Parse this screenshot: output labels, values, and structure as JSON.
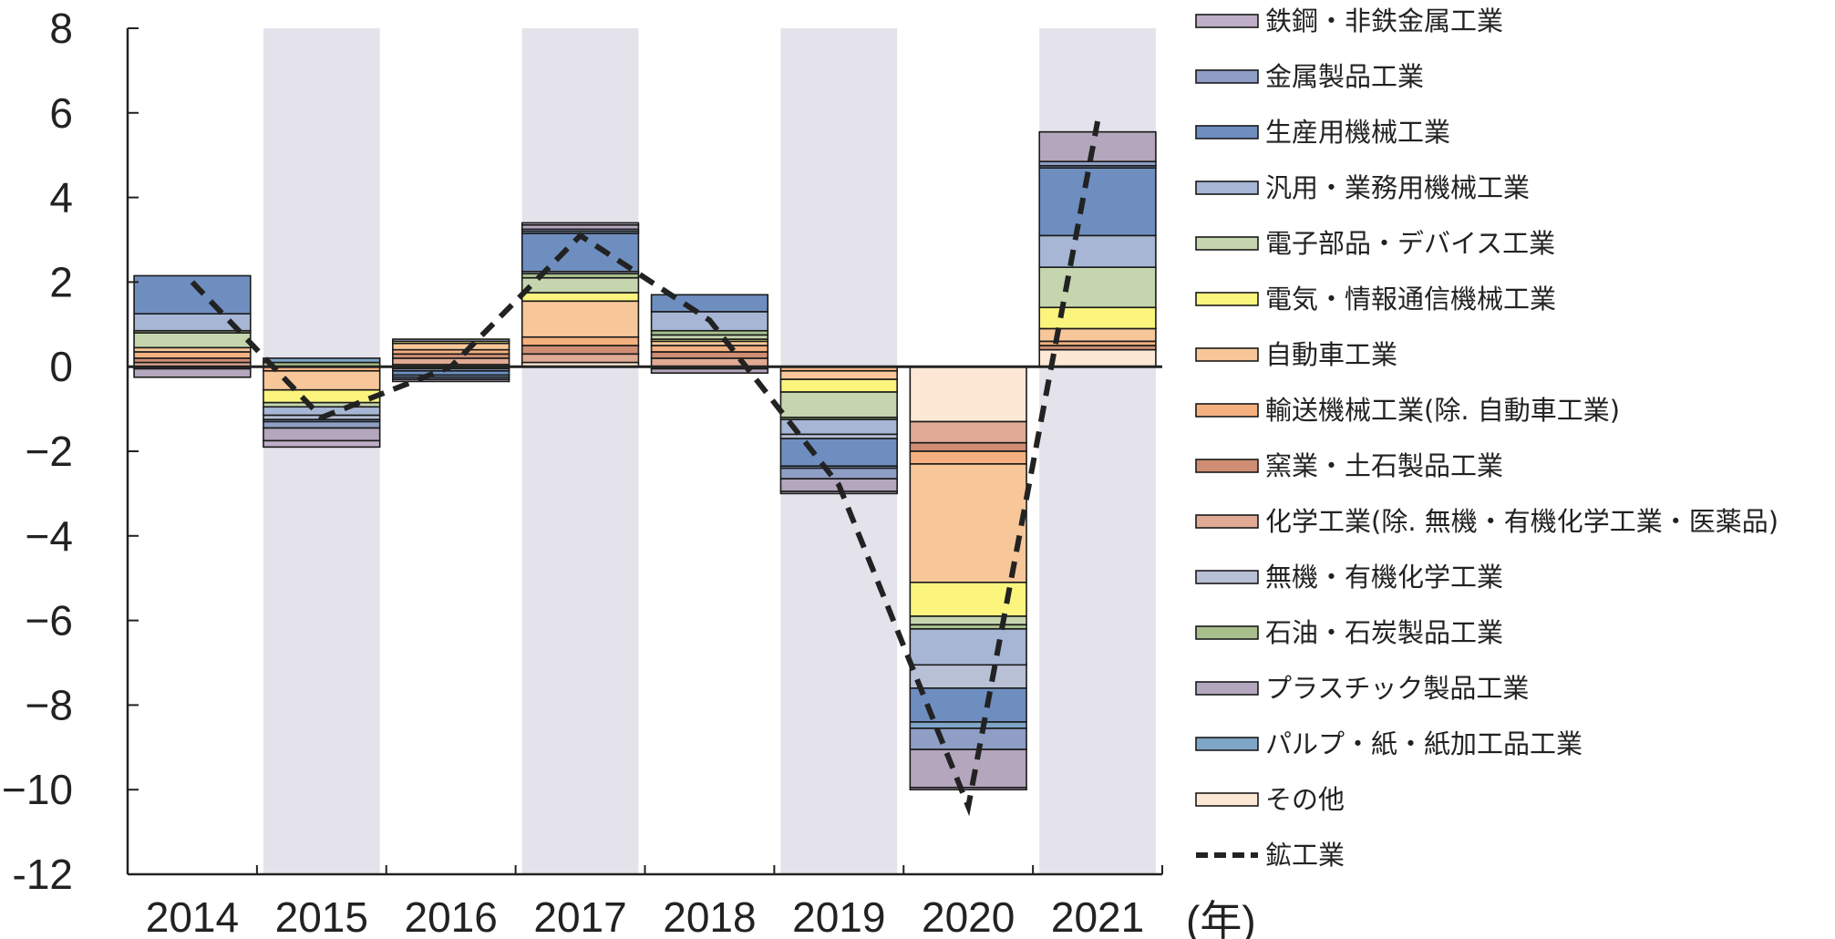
{
  "chart_data": {
    "type": "bar",
    "stacked": true,
    "categories": [
      "2014",
      "2015",
      "2016",
      "2017",
      "2018",
      "2019",
      "2020",
      "2021"
    ],
    "x_unit_label": "(年)",
    "ylim": [
      -12,
      8
    ],
    "yticks": [
      8,
      6,
      4,
      2,
      0,
      -2,
      -4,
      -6,
      -8,
      -10,
      -12
    ],
    "ytick_labels": [
      "8",
      "6",
      "4",
      "2",
      "0",
      "−2",
      "−4",
      "−6",
      "−8",
      "−10",
      "-12"
    ],
    "shaded_categories": [
      "2015",
      "2017",
      "2019",
      "2021"
    ],
    "legend_position": "right",
    "series": [
      {
        "name": "その他",
        "color": "#fde8d6",
        "values": [
          0.0,
          0.0,
          0.05,
          0.1,
          0.0,
          0.0,
          -1.3,
          0.4
        ]
      },
      {
        "name": "化学工業(除. 無機・有機化学工業・医薬品)",
        "color": "#e0aa94",
        "values": [
          0.1,
          0.0,
          0.15,
          0.2,
          0.2,
          0.0,
          -0.5,
          0.0
        ]
      },
      {
        "name": "窯業・土石製品工業",
        "color": "#cf8e74",
        "values": [
          0.1,
          0.0,
          0.1,
          0.2,
          0.15,
          0.0,
          -0.2,
          0.1
        ]
      },
      {
        "name": "輸送機械工業(除. 自動車工業)",
        "color": "#f4b17f",
        "values": [
          0.15,
          -0.1,
          0.1,
          0.2,
          0.15,
          -0.1,
          -0.3,
          0.1
        ]
      },
      {
        "name": "自動車工業",
        "color": "#f7c79a",
        "values": [
          0.1,
          -0.45,
          0.15,
          0.85,
          0.1,
          -0.2,
          -2.8,
          0.3
        ]
      },
      {
        "name": "電気・情報通信機械工業",
        "color": "#fbf57e",
        "values": [
          0.0,
          -0.3,
          0.05,
          0.2,
          0.05,
          -0.3,
          -0.8,
          0.5
        ]
      },
      {
        "name": "電子部品・デバイス工業",
        "color": "#c5d5ae",
        "values": [
          0.35,
          -0.1,
          0.0,
          0.35,
          0.1,
          -0.6,
          -0.2,
          0.95
        ]
      },
      {
        "name": "石油・石炭製品工業",
        "color": "#a8bf8c",
        "values": [
          0.05,
          0.1,
          -0.05,
          0.1,
          0.1,
          -0.05,
          -0.1,
          0.0
        ]
      },
      {
        "name": "汎用・業務用機械工業",
        "color": "#a6b6d4",
        "values": [
          0.4,
          -0.2,
          -0.05,
          0.0,
          0.45,
          -0.35,
          -0.85,
          0.75
        ]
      },
      {
        "name": "無機・有機化学工業",
        "color": "#b8c0d6",
        "values": [
          0.0,
          -0.1,
          0.05,
          0.05,
          0.0,
          -0.1,
          -0.55,
          0.0
        ]
      },
      {
        "name": "生産用機械工業",
        "color": "#6e8ec0",
        "values": [
          0.9,
          -0.05,
          -0.1,
          0.9,
          0.4,
          -0.65,
          -0.8,
          1.6
        ]
      },
      {
        "name": "パルプ・紙・紙加工品工業",
        "color": "#7fa5c8",
        "values": [
          0.0,
          0.1,
          -0.05,
          0.05,
          0.0,
          -0.05,
          -0.15,
          0.05
        ]
      },
      {
        "name": "金属製品工業",
        "color": "#8e9ec4",
        "values": [
          -0.05,
          -0.15,
          -0.05,
          0.05,
          -0.05,
          -0.25,
          -0.5,
          0.1
        ]
      },
      {
        "name": "プラスチック製品工業",
        "color": "#b4a6bc",
        "values": [
          -0.2,
          -0.3,
          -0.05,
          0.1,
          -0.1,
          -0.3,
          -0.9,
          0.7
        ]
      },
      {
        "name": "鉄鋼・非鉄金属工業",
        "color": "#bfaec8",
        "values": [
          0.0,
          -0.15,
          0.0,
          0.05,
          0.0,
          -0.05,
          -0.05,
          0.0
        ]
      }
    ],
    "line_series": {
      "name": "鉱工業",
      "style": "dashed",
      "color": "#222222",
      "values": [
        2.0,
        -1.2,
        0.0,
        3.1,
        1.1,
        -2.8,
        -10.4,
        5.8
      ]
    },
    "legend_entries": [
      {
        "name": "鉄鋼・非鉄金属工業",
        "color": "#bfaec8",
        "kind": "box"
      },
      {
        "name": "金属製品工業",
        "color": "#8e9ec4",
        "kind": "box"
      },
      {
        "name": "生産用機械工業",
        "color": "#6e8ec0",
        "kind": "box"
      },
      {
        "name": "汎用・業務用機械工業",
        "color": "#a6b6d4",
        "kind": "box"
      },
      {
        "name": "電子部品・デバイス工業",
        "color": "#c5d5ae",
        "kind": "box"
      },
      {
        "name": "電気・情報通信機械工業",
        "color": "#fbf57e",
        "kind": "box"
      },
      {
        "name": "自動車工業",
        "color": "#f7c79a",
        "kind": "box"
      },
      {
        "name": "輸送機械工業(除. 自動車工業)",
        "color": "#f4b17f",
        "kind": "box"
      },
      {
        "name": "窯業・土石製品工業",
        "color": "#cf8e74",
        "kind": "box"
      },
      {
        "name": "化学工業(除. 無機・有機化学工業・医薬品)",
        "color": "#e0aa94",
        "kind": "box"
      },
      {
        "name": "無機・有機化学工業",
        "color": "#b8c0d6",
        "kind": "box"
      },
      {
        "name": "石油・石炭製品工業",
        "color": "#a8bf8c",
        "kind": "box"
      },
      {
        "name": "プラスチック製品工業",
        "color": "#b4a6bc",
        "kind": "box"
      },
      {
        "name": "パルプ・紙・紙加工品工業",
        "color": "#7fa5c8",
        "kind": "box"
      },
      {
        "name": "その他",
        "color": "#fde8d6",
        "kind": "box"
      },
      {
        "name": "鉱工業",
        "color": "#222222",
        "kind": "dashed-line"
      }
    ]
  }
}
